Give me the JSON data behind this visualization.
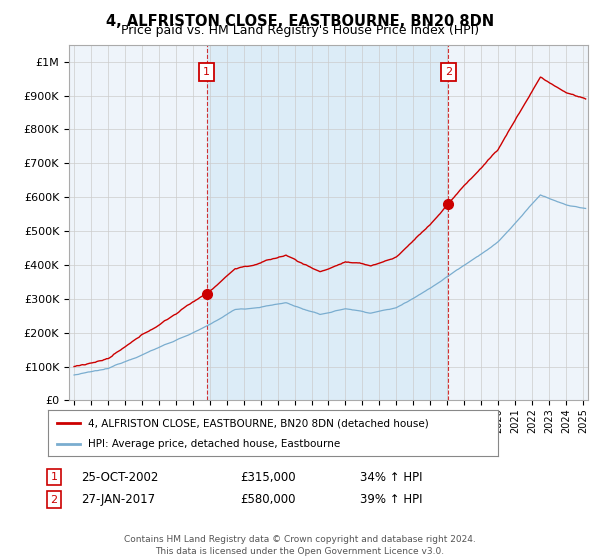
{
  "title": "4, ALFRISTON CLOSE, EASTBOURNE, BN20 8DN",
  "subtitle": "Price paid vs. HM Land Registry's House Price Index (HPI)",
  "legend_label_red": "4, ALFRISTON CLOSE, EASTBOURNE, BN20 8DN (detached house)",
  "legend_label_blue": "HPI: Average price, detached house, Eastbourne",
  "annotation1": {
    "num": "1",
    "date": "25-OCT-2002",
    "price": "£315,000",
    "pct": "34% ↑ HPI"
  },
  "annotation2": {
    "num": "2",
    "date": "27-JAN-2017",
    "price": "£580,000",
    "pct": "39% ↑ HPI"
  },
  "footer": "Contains HM Land Registry data © Crown copyright and database right 2024.\nThis data is licensed under the Open Government Licence v3.0.",
  "ylim": [
    0,
    1050000
  ],
  "yticks": [
    0,
    100000,
    200000,
    300000,
    400000,
    500000,
    600000,
    700000,
    800000,
    900000,
    1000000
  ],
  "ytick_labels": [
    "£0",
    "£100K",
    "£200K",
    "£300K",
    "£400K",
    "£500K",
    "£600K",
    "£700K",
    "£800K",
    "£900K",
    "£1M"
  ],
  "red_color": "#cc0000",
  "blue_color": "#7aadcf",
  "vline_color": "#cc0000",
  "background_color": "#ffffff",
  "plot_bg_color": "#eef4fa",
  "grid_color": "#cccccc",
  "marker1_x": 2002.82,
  "marker1_y": 315000,
  "marker2_x": 2017.07,
  "marker2_y": 580000,
  "xlim_left": 1994.7,
  "xlim_right": 2025.3
}
